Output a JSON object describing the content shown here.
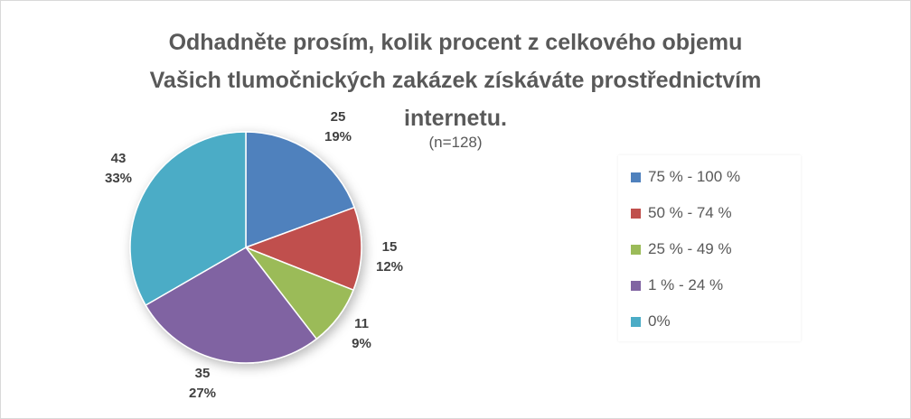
{
  "chart_data": {
    "type": "pie",
    "title_lines": [
      "Odhadněte prosím, kolik procent z celkového objemu",
      "Vašich tlumočnických zakázek získáváte prostřednictvím",
      "internetu."
    ],
    "subtitle": "(n=128)",
    "legend_position": "right",
    "slices": [
      {
        "label": "75 % - 100 %",
        "value": 25,
        "percent": "19%",
        "color": "#4f81bd"
      },
      {
        "label": "50 % - 74 %",
        "value": 15,
        "percent": "12%",
        "color": "#c0504d"
      },
      {
        "label": "25 % - 49 %",
        "value": 11,
        "percent": "9%",
        "color": "#9bbb59"
      },
      {
        "label": "1 % - 24 %",
        "value": 35,
        "percent": "27%",
        "color": "#8064a2"
      },
      {
        "label": "0%",
        "value": 43,
        "percent": "33%",
        "color": "#4bacc6"
      }
    ]
  }
}
